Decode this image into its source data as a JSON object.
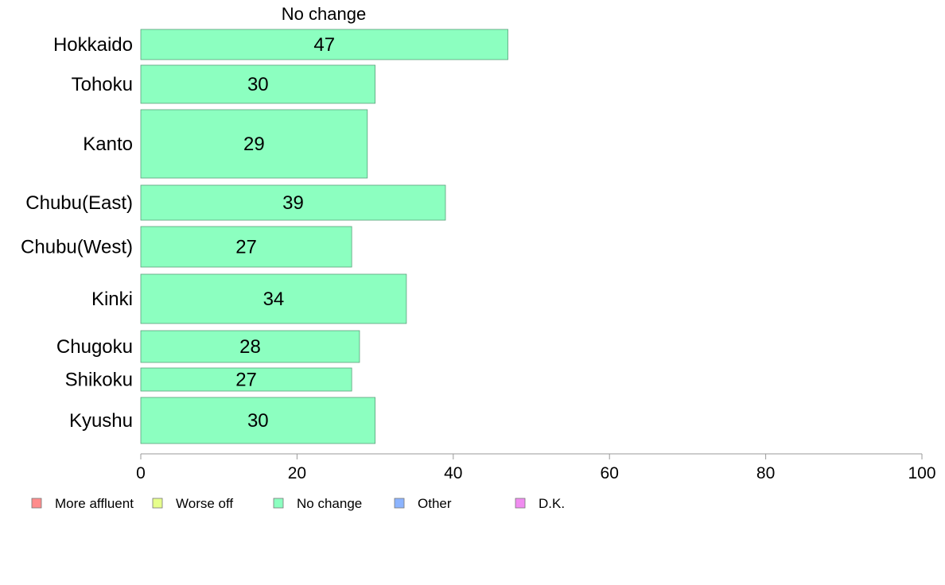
{
  "chart_data": {
    "type": "bar",
    "orientation": "horizontal",
    "title": "No change",
    "categories": [
      "Hokkaido",
      "Tohoku",
      "Kanto",
      "Chubu(East)",
      "Chubu(West)",
      "Kinki",
      "Chugoku",
      "Shikoku",
      "Kyushu"
    ],
    "series": [
      {
        "name": "No change",
        "values": [
          47,
          30,
          29,
          39,
          27,
          34,
          28,
          27,
          30
        ],
        "color": "#8cffc0"
      }
    ],
    "data_labels": [
      "47",
      "30",
      "29",
      "39",
      "27",
      "34",
      "28",
      "27",
      "30"
    ],
    "xlim": [
      0,
      100
    ],
    "x_ticks": [
      0,
      20,
      40,
      60,
      80,
      100
    ],
    "x_tick_labels": [
      "0",
      "20",
      "40",
      "60",
      "80",
      "100"
    ],
    "grid": false,
    "legend_position": "bottom",
    "legend": [
      {
        "label": "More affluent",
        "color": "#ff8c8c"
      },
      {
        "label": "Worse off",
        "color": "#e6ff8c"
      },
      {
        "label": "No change",
        "color": "#8cffc0"
      },
      {
        "label": "Other",
        "color": "#8cb4ff"
      },
      {
        "label": "D.K.",
        "color": "#f08cf0"
      }
    ]
  }
}
